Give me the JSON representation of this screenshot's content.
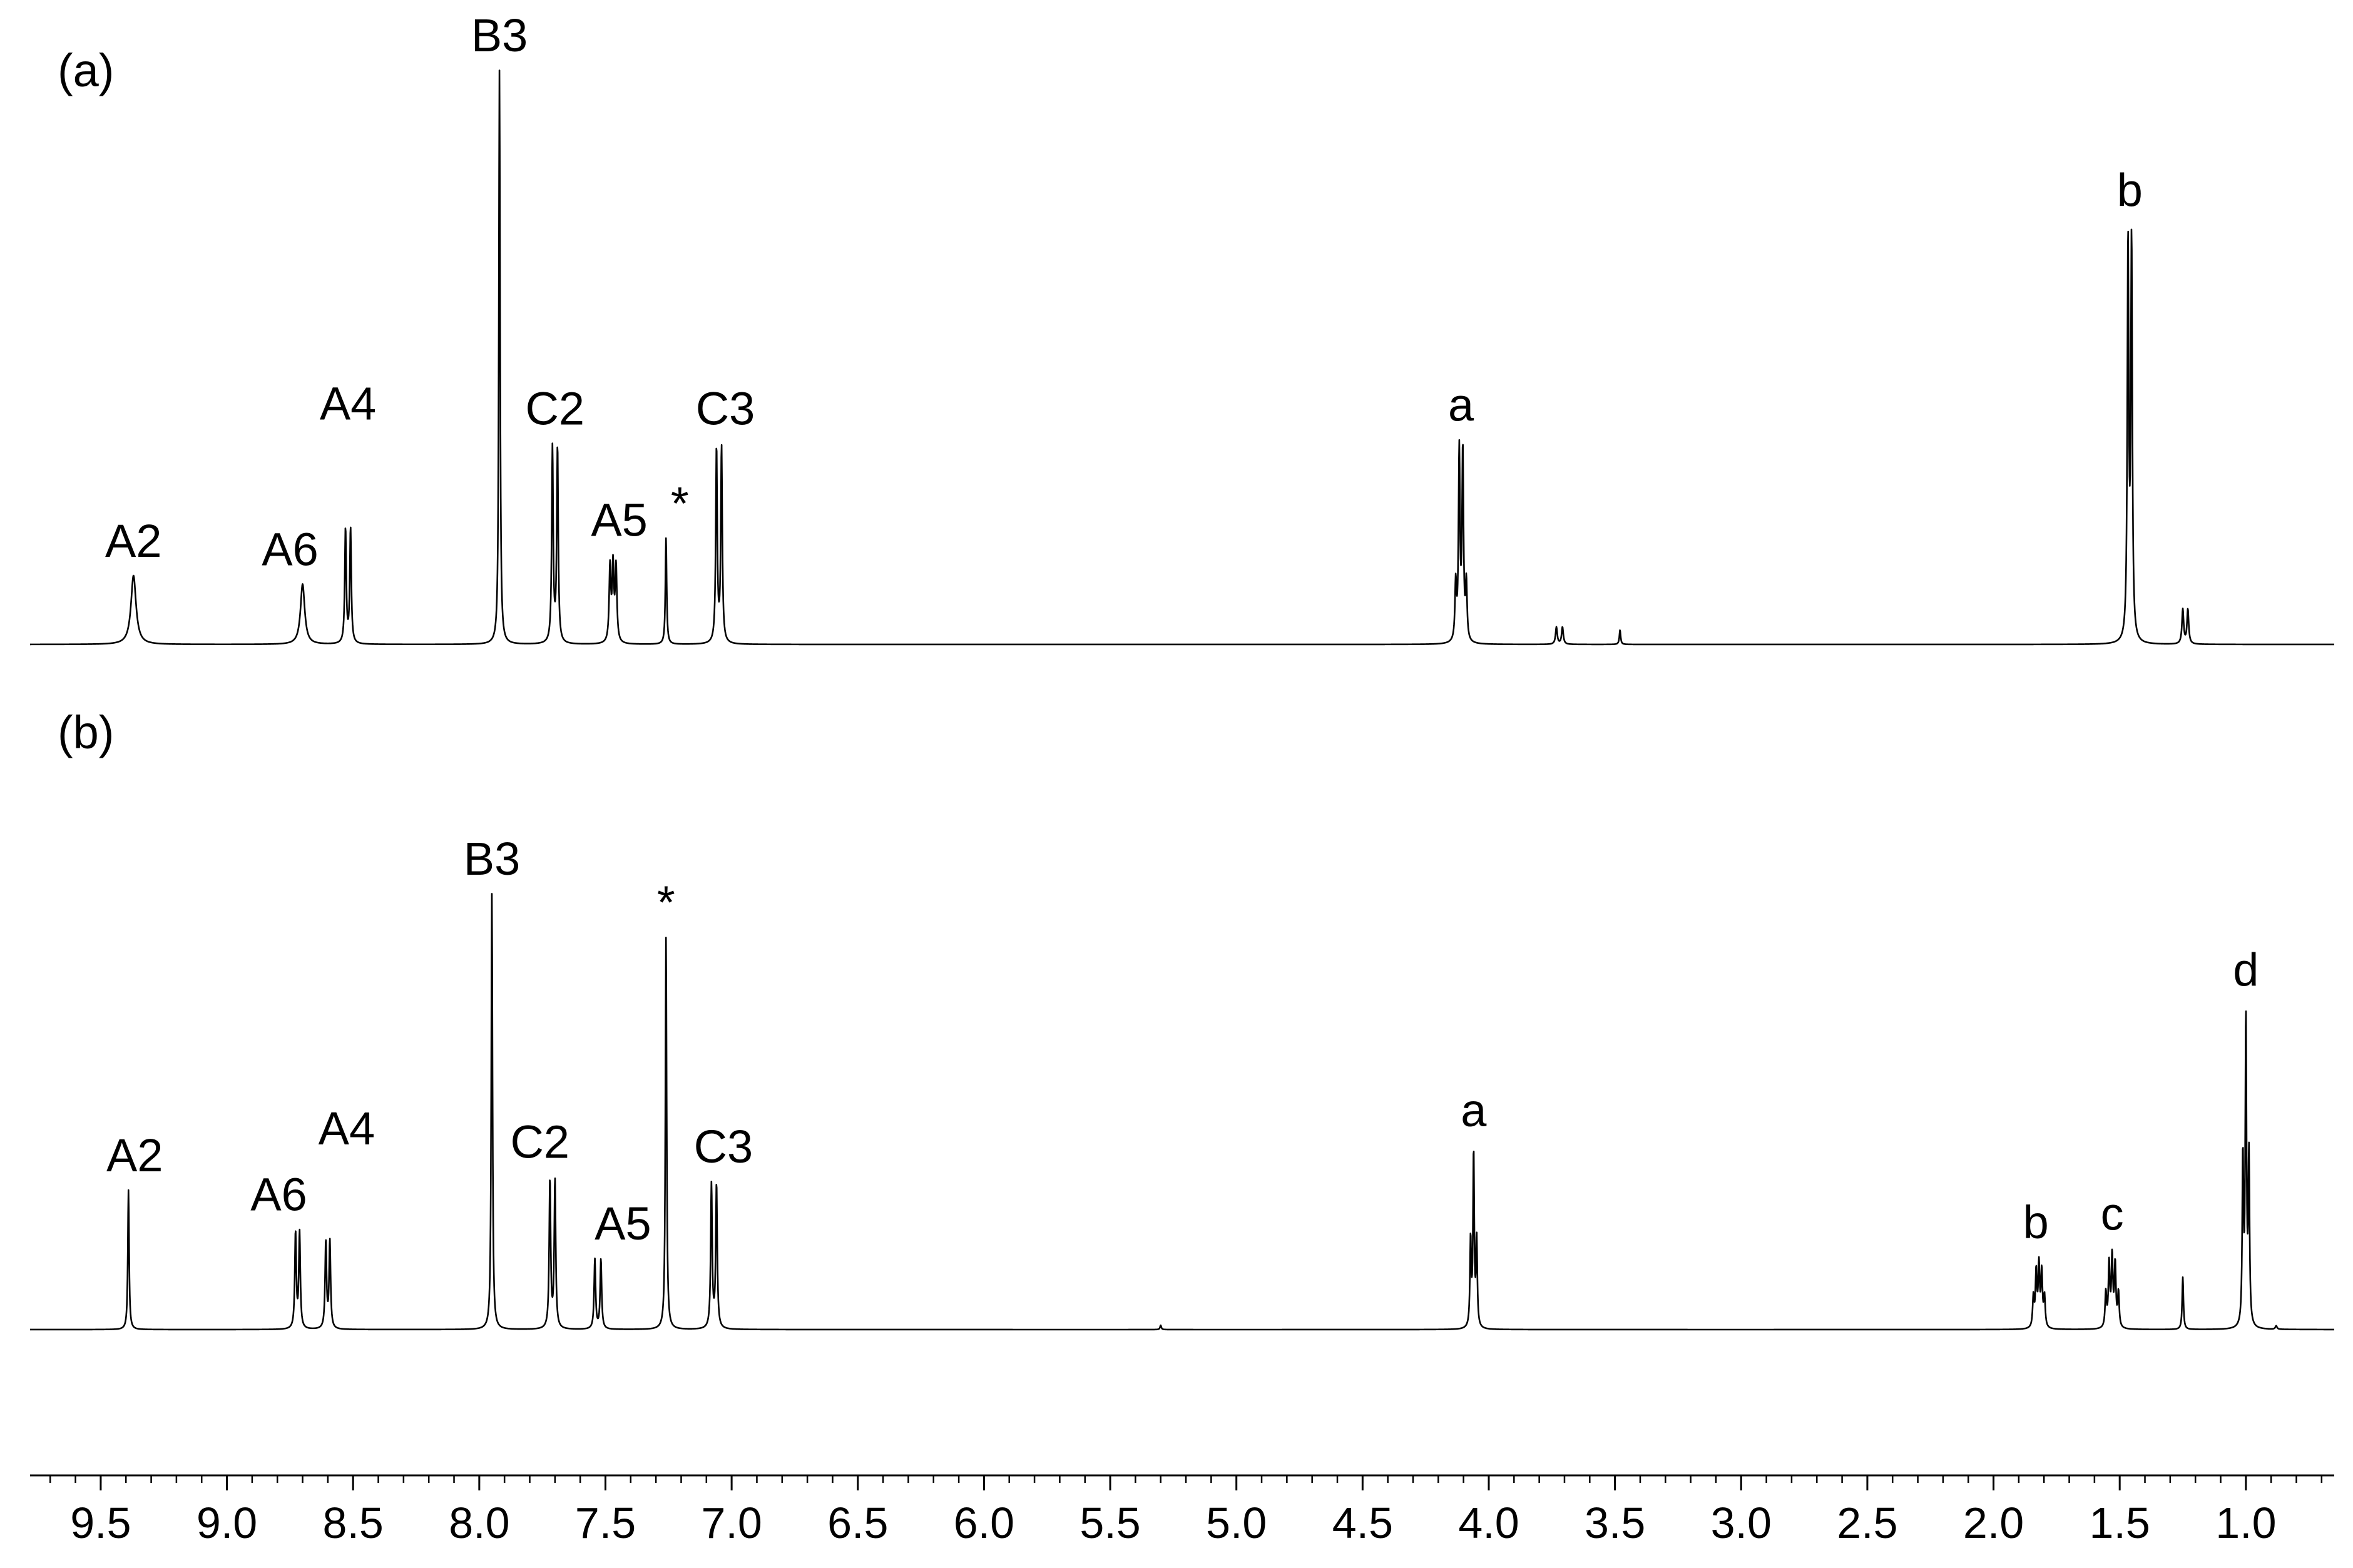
{
  "chart_data": {
    "type": "line",
    "xlabel": "",
    "ylabel": "",
    "x_axis": {
      "range": [
        9.78,
        0.65
      ],
      "reversed": true,
      "major_ticks": [
        9.5,
        9.0,
        8.5,
        8.0,
        7.5,
        7.0,
        6.5,
        6.0,
        5.5,
        5.0,
        4.5,
        4.0,
        3.5,
        3.0,
        2.5,
        2.0,
        1.5,
        1.0
      ],
      "tick_labels": [
        "9.5",
        "9.0",
        "8.5",
        "8.0",
        "7.5",
        "7.0",
        "6.5",
        "6.0",
        "5.5",
        "5.0",
        "4.5",
        "4.0",
        "3.5",
        "3.0",
        "2.5",
        "2.0",
        "1.5",
        "1.0"
      ],
      "minor_step": 0.1
    },
    "grid": false,
    "legend": "none",
    "spectra": [
      {
        "panel_label": "(a)",
        "peaks": [
          {
            "label": "A2",
            "shift": 9.37,
            "intensity": 0.12,
            "width": 0.012,
            "lines": [
              0
            ]
          },
          {
            "label": "A6",
            "shift": 8.7,
            "intensity": 0.105,
            "width": 0.01,
            "lines": [
              0
            ]
          },
          {
            "label": "A4",
            "shift": 8.52,
            "intensity": 0.2,
            "width": 0.0035,
            "lines": [
              -0.01,
              0.01
            ]
          },
          {
            "label": "B3",
            "shift": 7.92,
            "intensity": 1.0,
            "width": 0.003,
            "lines": [
              0
            ]
          },
          {
            "label": "C2",
            "shift": 7.7,
            "intensity": 0.34,
            "width": 0.0035,
            "lines": [
              -0.01,
              0.01
            ]
          },
          {
            "label": "A5",
            "shift": 7.47,
            "intensity": 0.13,
            "width": 0.004,
            "lines": [
              -0.012,
              0,
              0.012
            ]
          },
          {
            "label": "*",
            "shift": 7.26,
            "intensity": 0.185,
            "width": 0.003,
            "lines": [
              0
            ]
          },
          {
            "label": "C3",
            "shift": 7.05,
            "intensity": 0.34,
            "width": 0.0035,
            "lines": [
              -0.01,
              0.01
            ]
          },
          {
            "label": "a",
            "shift": 4.11,
            "intensity": 0.33,
            "width": 0.0035,
            "lines": [
              -0.021,
              -0.007,
              0.007,
              0.021
            ],
            "line_weights": [
              0.3,
              1,
              1,
              0.3
            ]
          },
          {
            "label": "",
            "shift": 3.72,
            "intensity": 0.03,
            "width": 0.004,
            "lines": [
              -0.012,
              0.012
            ]
          },
          {
            "label": "",
            "shift": 3.48,
            "intensity": 0.025,
            "width": 0.003,
            "lines": [
              0
            ]
          },
          {
            "label": "b",
            "shift": 1.46,
            "intensity": 0.69,
            "width": 0.0035,
            "lines": [
              -0.007,
              0.007
            ]
          },
          {
            "label": "",
            "shift": 1.24,
            "intensity": 0.06,
            "width": 0.004,
            "lines": [
              -0.01,
              0.01
            ]
          }
        ]
      },
      {
        "panel_label": "(b)",
        "peaks": [
          {
            "label": "A2",
            "shift": 9.39,
            "intensity": 0.32,
            "width": 0.003,
            "lines": [
              0
            ]
          },
          {
            "label": "A6",
            "shift": 8.72,
            "intensity": 0.22,
            "width": 0.0035,
            "lines": [
              -0.008,
              0.008
            ]
          },
          {
            "label": "A4",
            "shift": 8.6,
            "intensity": 0.2,
            "width": 0.0035,
            "lines": [
              -0.008,
              0.008
            ]
          },
          {
            "label": "B3",
            "shift": 7.95,
            "intensity": 1.0,
            "width": 0.003,
            "lines": [
              0
            ]
          },
          {
            "label": "C2",
            "shift": 7.71,
            "intensity": 0.34,
            "width": 0.0035,
            "lines": [
              -0.01,
              0.01
            ]
          },
          {
            "label": "A5",
            "shift": 7.53,
            "intensity": 0.16,
            "width": 0.0035,
            "lines": [
              -0.012,
              0.012
            ]
          },
          {
            "label": "*",
            "shift": 7.26,
            "intensity": 0.9,
            "width": 0.003,
            "lines": [
              0
            ]
          },
          {
            "label": "C3",
            "shift": 7.07,
            "intensity": 0.33,
            "width": 0.0035,
            "lines": [
              -0.01,
              0.01
            ]
          },
          {
            "label": "a",
            "shift": 4.06,
            "intensity": 0.4,
            "width": 0.003,
            "lines": [
              -0.012,
              0,
              0.012
            ],
            "line_weights": [
              0.5,
              1,
              0.5
            ]
          },
          {
            "label": "",
            "shift": 5.3,
            "intensity": 0.01,
            "width": 0.003,
            "lines": [
              0
            ]
          },
          {
            "label": "b",
            "shift": 1.82,
            "intensity": 0.14,
            "width": 0.0035,
            "lines": [
              -0.022,
              -0.011,
              0,
              0.011,
              0.022
            ],
            "line_weights": [
              0.5,
              0.9,
              1,
              0.9,
              0.5
            ]
          },
          {
            "label": "c",
            "shift": 1.53,
            "intensity": 0.16,
            "width": 0.0035,
            "lines": [
              -0.025,
              -0.012,
              0,
              0.012,
              0.025
            ],
            "line_weights": [
              0.5,
              0.9,
              1,
              0.9,
              0.5
            ]
          },
          {
            "label": "",
            "shift": 1.25,
            "intensity": 0.12,
            "width": 0.003,
            "lines": [
              0
            ]
          },
          {
            "label": "d",
            "shift": 1.0,
            "intensity": 0.7,
            "width": 0.003,
            "lines": [
              -0.012,
              0,
              0.012
            ],
            "line_weights": [
              0.55,
              1,
              0.55
            ]
          },
          {
            "label": "",
            "shift": 0.88,
            "intensity": 0.008,
            "width": 0.004,
            "lines": [
              0
            ]
          }
        ]
      }
    ]
  }
}
